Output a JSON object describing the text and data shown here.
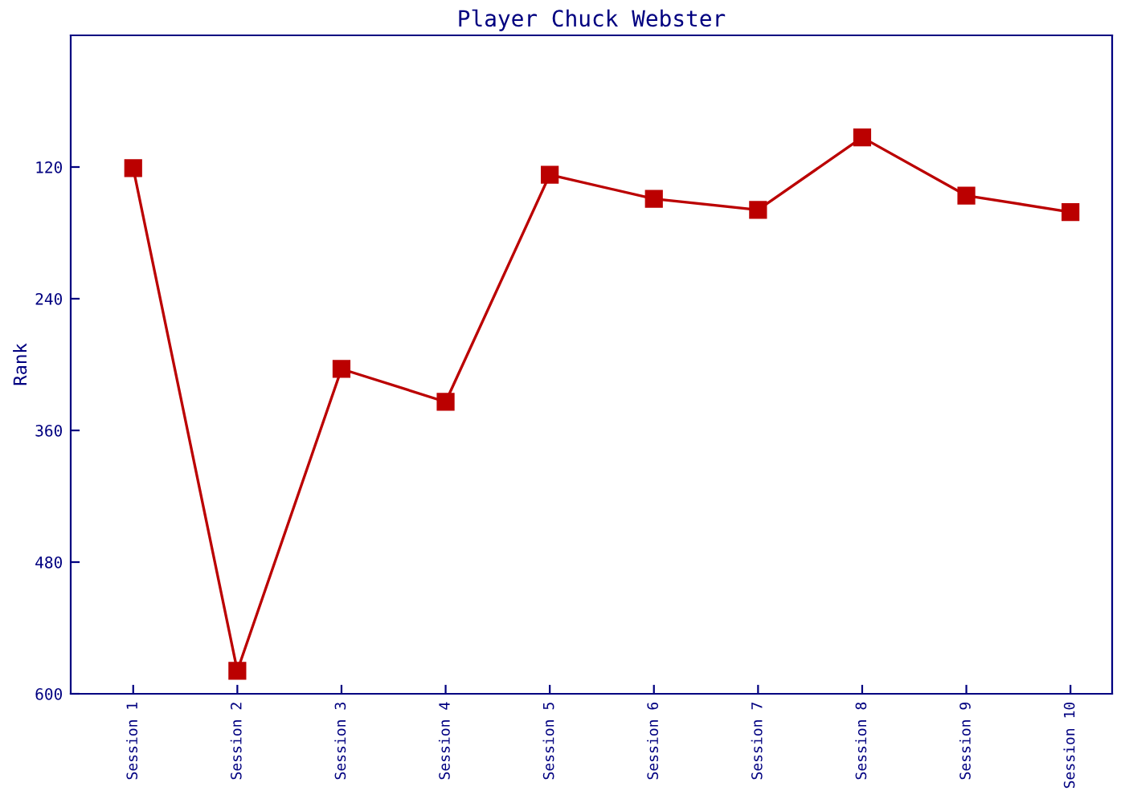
{
  "chart_data": {
    "type": "line",
    "title": "Player Chuck Webster",
    "ylabel": "Rank",
    "categories": [
      "Session 1",
      "Session 2",
      "Session 3",
      "Session 4",
      "Session 5",
      "Session 6",
      "Session 7",
      "Session 8",
      "Session 9",
      "Session 10"
    ],
    "series": [
      {
        "color": "#bb0000",
        "values": [
          121,
          579,
          304,
          334,
          127,
          149,
          159,
          93,
          146,
          161
        ]
      }
    ],
    "ylim": [
      600,
      0
    ],
    "yticks": [
      120,
      240,
      360,
      480,
      600
    ],
    "marker": "square",
    "line_style": "solid",
    "grid": false,
    "legend": false
  }
}
